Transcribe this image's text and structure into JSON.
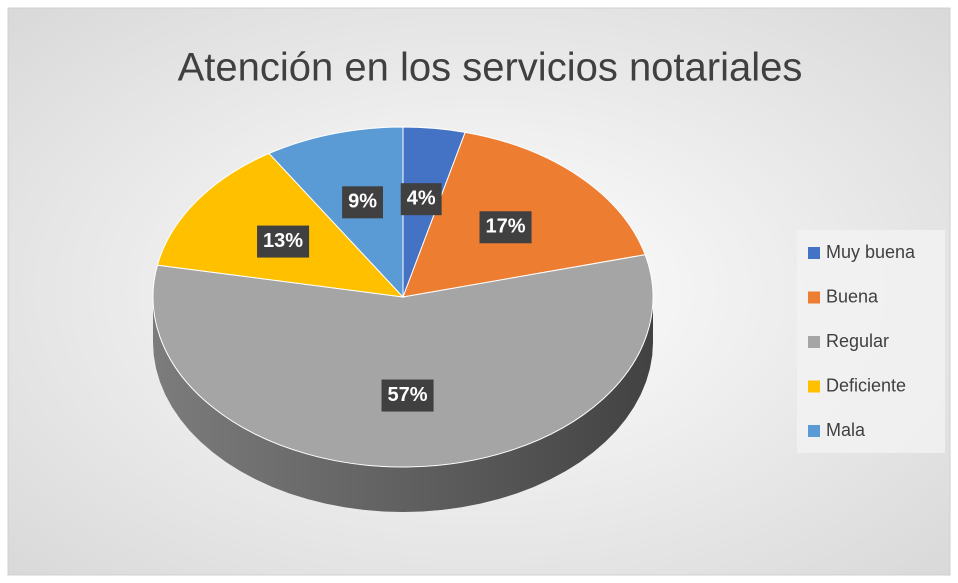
{
  "chart_data": {
    "type": "pie3d",
    "title": "Atención en los servicios notariales",
    "categories": [
      "Muy buena",
      "Buena",
      "Regular",
      "Deficiente",
      "Mala"
    ],
    "values": [
      4,
      17,
      57,
      13,
      9
    ],
    "value_labels": [
      "4%",
      "17%",
      "57%",
      "13%",
      "9%"
    ],
    "colors": [
      "#4472c4",
      "#ed7d31",
      "#a5a5a5",
      "#ffc000",
      "#5b9bd5"
    ],
    "legend": "right"
  }
}
